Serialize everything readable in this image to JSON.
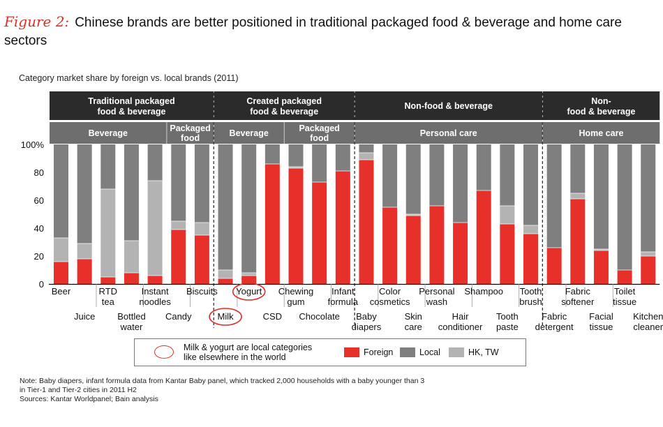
{
  "figure": {
    "label": "Figure 2:",
    "title": "Chinese brands are better positioned in traditional packaged food & beverage and home care sectors"
  },
  "note_lines": [
    "Note: Baby diapers, infant formula data from Kantar Baby panel, which tracked 2,000 households with a baby younger than 3",
    "in Tier-1 and Tier-2 cities in 2011 H2",
    "Sources: Kantar Worldpanel; Bain analysis"
  ],
  "legend": {
    "annotation_line1": "Milk & yogurt are local categories",
    "annotation_line2": "like elsewhere in the world",
    "foreign": "Foreign",
    "local": "Local",
    "hktw": "HK, TW"
  },
  "colors": {
    "foreign": "#e8302a",
    "local": "#7f7f7f",
    "hktw": "#b3b3b3",
    "header": "#2b2b2b",
    "subheader": "#6e6e6e",
    "accent": "#e0302a"
  },
  "chart_data": {
    "type": "bar",
    "stacked": true,
    "title": "Category market share by foreign vs. local brands (2011)",
    "ylim": [
      0,
      100
    ],
    "yticks": [
      "0",
      "20",
      "40",
      "60",
      "80",
      "100%"
    ],
    "categories": [
      "Beer",
      "Juice",
      "RTD tea",
      "Bottled water",
      "Instant noodles",
      "Candy",
      "Biscuits",
      "Milk",
      "Yogurt",
      "CSD",
      "Chewing gum",
      "Chocolate",
      "Infant formula",
      "Baby diapers",
      "Color cosmetics",
      "Skin care",
      "Personal wash",
      "Hair conditioner",
      "Shampoo",
      "Tooth paste",
      "Tooth brush",
      "Fabric detergent",
      "Fabric softener",
      "Facial tissue",
      "Toilet tissue",
      "Kitchen cleaner"
    ],
    "category_labels": [
      [
        "Beer"
      ],
      [
        "Juice"
      ],
      [
        "RTD",
        "tea"
      ],
      [
        "Bottled",
        "water"
      ],
      [
        "Instant",
        "noodles"
      ],
      [
        "Candy"
      ],
      [
        "Biscuits"
      ],
      [
        "Milk"
      ],
      [
        "Yogurt"
      ],
      [
        "CSD"
      ],
      [
        "Chewing",
        "gum"
      ],
      [
        "Chocolate"
      ],
      [
        "Infant",
        "formula"
      ],
      [
        "Baby",
        "diapers"
      ],
      [
        "Color",
        "cosmetics"
      ],
      [
        "Skin",
        "care"
      ],
      [
        "Personal",
        "wash"
      ],
      [
        "Hair",
        "conditioner"
      ],
      [
        "Shampoo"
      ],
      [
        "Tooth",
        "paste"
      ],
      [
        "Tooth",
        "brush"
      ],
      [
        "Fabric",
        "detergent"
      ],
      [
        "Fabric",
        "softener"
      ],
      [
        "Facial",
        "tissue"
      ],
      [
        "Toilet",
        "tissue"
      ],
      [
        "Kitchen",
        "cleaner"
      ]
    ],
    "label_row": [
      "top",
      "bottom",
      "top",
      "bottom",
      "top",
      "bottom",
      "top",
      "bottom",
      "top",
      "bottom",
      "top",
      "bottom",
      "top",
      "bottom",
      "top",
      "bottom",
      "top",
      "bottom",
      "top",
      "bottom",
      "top",
      "bottom",
      "top",
      "bottom",
      "top",
      "bottom"
    ],
    "circled": [
      "Milk",
      "Yogurt"
    ],
    "series": [
      {
        "name": "Foreign",
        "values": [
          16,
          18,
          5,
          8,
          6,
          39,
          35,
          4,
          6,
          86,
          83,
          73,
          81,
          89,
          55,
          49,
          56,
          44,
          67,
          43,
          36,
          26,
          61,
          24,
          10,
          20
        ]
      },
      {
        "name": "HK, TW",
        "values": [
          17,
          11,
          63,
          23,
          68,
          6,
          9,
          6,
          2,
          0,
          1,
          0,
          0,
          5,
          0,
          1,
          0,
          0,
          0,
          13,
          6,
          0,
          4,
          1,
          0,
          3
        ]
      },
      {
        "name": "Local",
        "values": [
          67,
          71,
          32,
          69,
          26,
          55,
          56,
          90,
          92,
          14,
          16,
          27,
          19,
          6,
          45,
          50,
          44,
          56,
          33,
          44,
          58,
          74,
          35,
          75,
          90,
          77
        ]
      }
    ],
    "groups": [
      {
        "header": [
          "Traditional packaged",
          "food & beverage"
        ],
        "start": 0,
        "end": 6,
        "subgroups": [
          {
            "label": [
              "Beverage"
            ],
            "start": 0,
            "end": 4
          },
          {
            "label": [
              "Packaged",
              "food"
            ],
            "start": 5,
            "end": 6
          }
        ]
      },
      {
        "header": [
          "Created packaged",
          "food & beverage"
        ],
        "start": 7,
        "end": 12,
        "subgroups": [
          {
            "label": [
              "Beverage"
            ],
            "start": 7,
            "end": 9
          },
          {
            "label": [
              "Packaged",
              "food"
            ],
            "start": 10,
            "end": 12
          }
        ]
      },
      {
        "header": [
          "Non-food & beverage"
        ],
        "start": 13,
        "end": 20,
        "subgroups": [
          {
            "label": [
              "Personal care"
            ],
            "start": 13,
            "end": 20
          }
        ]
      },
      {
        "header": [
          "Non-",
          "food & beverage"
        ],
        "start": 21,
        "end": 25,
        "subgroups": [
          {
            "label": [
              "Home care"
            ],
            "start": 21,
            "end": 25
          }
        ]
      }
    ]
  }
}
